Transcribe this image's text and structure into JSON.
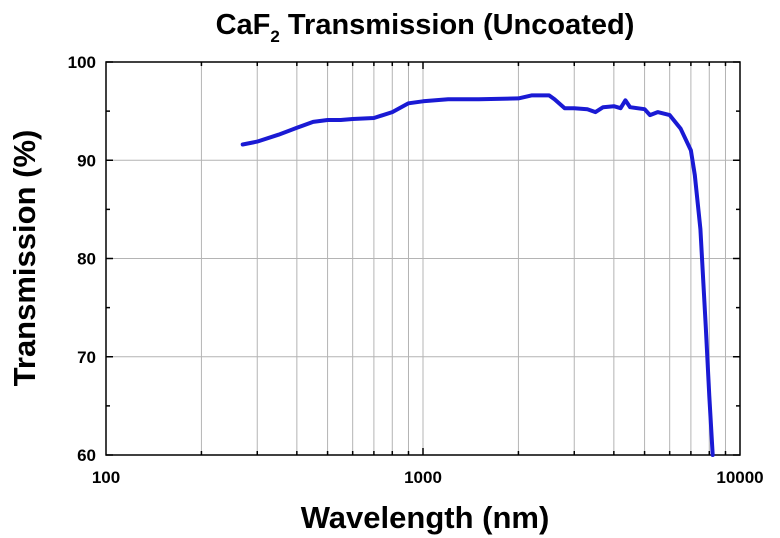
{
  "chart_data": {
    "type": "line",
    "title": "CaF",
    "title_subscript": "2",
    "title_suffix": " Transmission (Uncoated)",
    "xlabel": "Wavelength (nm)",
    "ylabel": "Transmission (%)",
    "x_scale": "log",
    "xlim": [
      100,
      10000
    ],
    "ylim": [
      60,
      100
    ],
    "x_ticks": [
      "100",
      "1000",
      "10000"
    ],
    "y_ticks": [
      "60",
      "70",
      "80",
      "90",
      "100"
    ],
    "grid": true,
    "colors": {
      "series": "#1a1ad4",
      "grid": "#b4b4b4",
      "axis": "#000000"
    },
    "series": [
      {
        "x": [
          270,
          300,
          350,
          400,
          450,
          500,
          550,
          600,
          700,
          800,
          900,
          1000,
          1200,
          1500,
          2000,
          2200,
          2500,
          2600,
          2800,
          3000,
          3300,
          3500,
          3700,
          4000,
          4200,
          4350,
          4500,
          5000,
          5200,
          5500,
          6000,
          6500,
          7000,
          7200,
          7500,
          7800,
          8000,
          8200
        ],
        "y": [
          91.6,
          91.9,
          92.6,
          93.3,
          93.9,
          94.1,
          94.1,
          94.2,
          94.3,
          94.9,
          95.8,
          96.0,
          96.2,
          96.2,
          96.3,
          96.6,
          96.6,
          96.2,
          95.3,
          95.3,
          95.2,
          94.9,
          95.4,
          95.5,
          95.3,
          96.1,
          95.4,
          95.2,
          94.6,
          94.9,
          94.6,
          93.2,
          91.0,
          88.5,
          83.0,
          73.0,
          66.0,
          60.0
        ]
      }
    ]
  }
}
